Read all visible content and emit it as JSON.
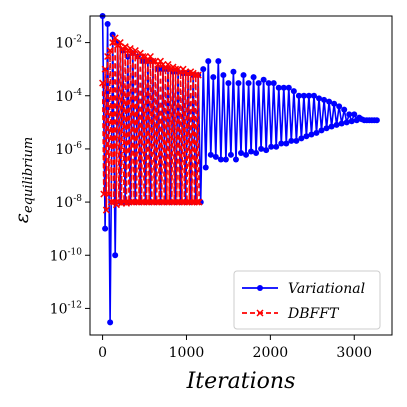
{
  "chart_data": {
    "type": "line",
    "xlabel": "Iterations",
    "ylabel": "ε_equilibrium",
    "xlim": [
      -150,
      3450
    ],
    "ylim": [
      1e-13,
      0.1
    ],
    "yscale": "log",
    "grid": false,
    "legend_placement": "lower-right",
    "x_ticks": [
      {
        "value": 0,
        "label": "0"
      },
      {
        "value": 1000,
        "label": "1000"
      },
      {
        "value": 2000,
        "label": "2000"
      },
      {
        "value": 3000,
        "label": "3000"
      }
    ],
    "y_ticks": [
      {
        "value": 1e-12,
        "base": "10",
        "exp": "-12"
      },
      {
        "value": 1e-10,
        "base": "10",
        "exp": "-10"
      },
      {
        "value": 1e-08,
        "base": "10",
        "exp": "-8"
      },
      {
        "value": 1e-06,
        "base": "10",
        "exp": "-6"
      },
      {
        "value": 0.0001,
        "base": "10",
        "exp": "-4"
      },
      {
        "value": 0.01,
        "base": "10",
        "exp": "-2"
      }
    ],
    "series": [
      {
        "name": "Variational",
        "color": "#0000ff",
        "marker": "circle",
        "line_style": "solid",
        "x": [
          0,
          30,
          60,
          90,
          120,
          150,
          180,
          210,
          240,
          270,
          300,
          330,
          360,
          390,
          420,
          450,
          480,
          510,
          540,
          570,
          600,
          630,
          660,
          690,
          720,
          750,
          780,
          810,
          840,
          870,
          900,
          930,
          960,
          990,
          1020,
          1050,
          1080,
          1110,
          1140,
          1170,
          1200,
          1230,
          1260,
          1290,
          1320,
          1350,
          1380,
          1410,
          1440,
          1470,
          1500,
          1530,
          1560,
          1590,
          1620,
          1650,
          1680,
          1710,
          1740,
          1770,
          1800,
          1830,
          1860,
          1890,
          1920,
          1950,
          1980,
          2010,
          2040,
          2070,
          2100,
          2130,
          2160,
          2190,
          2220,
          2250,
          2280,
          2310,
          2340,
          2370,
          2400,
          2430,
          2460,
          2490,
          2520,
          2550,
          2580,
          2610,
          2640,
          2670,
          2700,
          2730,
          2760,
          2790,
          2820,
          2850,
          2880,
          2910,
          2940,
          2970,
          3000,
          3030,
          3060,
          3090,
          3120,
          3150,
          3180,
          3210,
          3240,
          3270
        ],
        "y": [
          0.1,
          1e-09,
          0.05,
          3e-13,
          0.02,
          1e-10,
          0.01,
          1e-08,
          0.005,
          1e-08,
          0.003,
          1e-08,
          0.004,
          1e-08,
          0.003,
          1e-08,
          0.002,
          1e-08,
          0.002,
          1e-08,
          0.002,
          1e-08,
          0.001,
          1e-08,
          0.001,
          1e-08,
          0.001,
          1e-08,
          0.0008,
          1e-08,
          0.0008,
          1e-08,
          0.0007,
          1e-08,
          0.0007,
          1e-08,
          0.0006,
          1e-08,
          0.0006,
          1e-08,
          0.001,
          2e-07,
          0.002,
          6e-07,
          0.0005,
          5e-07,
          0.002,
          4e-07,
          0.0006,
          4e-07,
          0.0003,
          6e-07,
          0.0008,
          4e-07,
          0.0003,
          7e-07,
          0.0006,
          6e-07,
          0.0003,
          8e-07,
          0.0005,
          7e-07,
          0.0003,
          1e-06,
          0.0004,
          9e-07,
          0.0003,
          1.2e-06,
          0.0003,
          1.2e-06,
          0.0002,
          1.6e-06,
          0.0002,
          1.6e-06,
          0.0002,
          2e-06,
          0.00015,
          2e-06,
          0.0001,
          2.5e-06,
          0.0001,
          3e-06,
          0.0001,
          3.5e-06,
          0.0001,
          4e-06,
          8e-05,
          5e-06,
          7e-05,
          6e-06,
          6e-05,
          7e-06,
          5e-05,
          8e-06,
          4e-05,
          9e-06,
          3e-05,
          1e-05,
          2e-05,
          1.1e-05,
          2e-05,
          1.2e-05,
          1.5e-05,
          1.3e-05,
          1.2e-05,
          1.2e-05,
          1.2e-05,
          1.2e-05,
          1.2e-05,
          1.2e-05
        ]
      },
      {
        "name": "DBFFT",
        "color": "#ff0000",
        "marker": "x",
        "line_style": "dashed",
        "x": [
          0,
          15,
          30,
          45,
          60,
          75,
          90,
          105,
          120,
          135,
          150,
          165,
          180,
          195,
          210,
          225,
          240,
          255,
          270,
          285,
          300,
          315,
          330,
          345,
          360,
          375,
          390,
          405,
          420,
          435,
          450,
          465,
          480,
          495,
          510,
          525,
          540,
          555,
          570,
          585,
          600,
          615,
          630,
          645,
          660,
          675,
          690,
          705,
          720,
          735,
          750,
          765,
          780,
          795,
          810,
          825,
          840,
          855,
          870,
          885,
          900,
          915,
          930,
          945,
          960,
          975,
          990,
          1005,
          1020,
          1035,
          1050,
          1065,
          1080,
          1095,
          1110,
          1125,
          1140,
          1150
        ],
        "y": [
          0.0003,
          2e-08,
          0.001,
          5e-09,
          0.003,
          2e-08,
          0.005,
          1e-08,
          0.01,
          1e-08,
          0.015,
          8e-09,
          0.008,
          1e-08,
          0.01,
          9e-09,
          0.006,
          1e-08,
          0.007,
          9e-09,
          0.005,
          1e-08,
          0.006,
          1e-08,
          0.004,
          1e-08,
          0.005,
          1e-08,
          0.003,
          1e-08,
          0.004,
          1e-08,
          0.003,
          1e-08,
          0.003,
          1e-08,
          0.002,
          1e-08,
          0.003,
          1e-08,
          0.002,
          1e-08,
          0.002,
          1e-08,
          0.0015,
          1e-08,
          0.002,
          1e-08,
          0.0015,
          1e-08,
          0.0012,
          1e-08,
          0.0015,
          1e-08,
          0.001,
          1e-08,
          0.0012,
          1e-08,
          0.001,
          1e-08,
          0.001,
          1e-08,
          0.0008,
          1e-08,
          0.001,
          1e-08,
          0.0008,
          1e-08,
          0.0007,
          1e-08,
          0.0008,
          1e-08,
          0.0007,
          1e-08,
          0.0006,
          1e-08,
          0.0006,
          1e-08
        ]
      }
    ]
  }
}
